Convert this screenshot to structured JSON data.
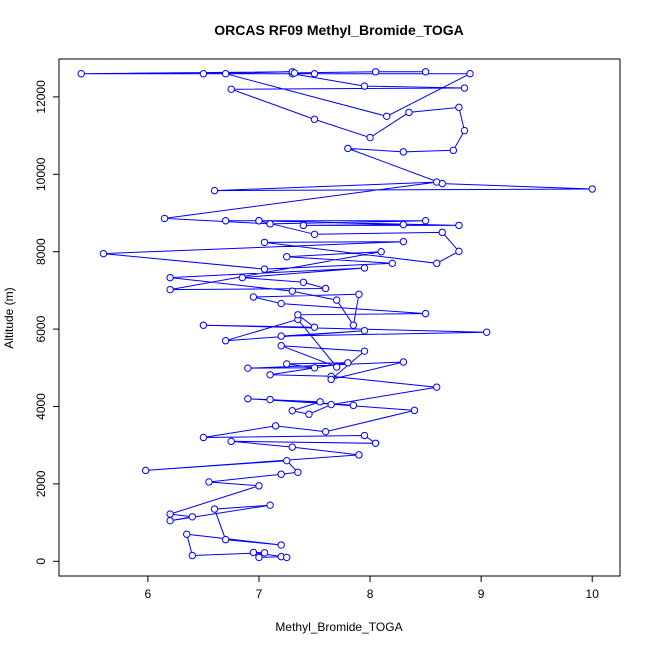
{
  "chart_data": {
    "type": "line",
    "title": "ORCAS RF09 Methyl_Bromide_TOGA",
    "xlabel": "Methyl_Bromide_TOGA",
    "ylabel": "Altitude (m)",
    "xlim": [
      5.2,
      10.25
    ],
    "ylim": [
      -380,
      12980
    ],
    "xticks": [
      6,
      7,
      8,
      9,
      10
    ],
    "yticks": [
      0,
      2000,
      4000,
      6000,
      8000,
      10000,
      12000
    ],
    "grid": false,
    "series": [
      {
        "color": "#0000ff",
        "marker": "open-circle",
        "points": [
          [
            7.0,
            100
          ],
          [
            7.2,
            120
          ],
          [
            7.25,
            100
          ],
          [
            6.95,
            230
          ],
          [
            7.05,
            220
          ],
          [
            6.4,
            150
          ],
          [
            6.35,
            700
          ],
          [
            7.2,
            420
          ],
          [
            6.7,
            560
          ],
          [
            6.6,
            1350
          ],
          [
            7.1,
            1450
          ],
          [
            6.2,
            1050
          ],
          [
            6.4,
            1150
          ],
          [
            6.2,
            1220
          ],
          [
            7.0,
            1950
          ],
          [
            6.55,
            2050
          ],
          [
            7.2,
            2250
          ],
          [
            7.35,
            2300
          ],
          [
            7.25,
            2600
          ],
          [
            5.98,
            2350
          ],
          [
            7.9,
            2750
          ],
          [
            7.3,
            2950
          ],
          [
            6.75,
            3100
          ],
          [
            8.05,
            3050
          ],
          [
            7.95,
            3250
          ],
          [
            6.5,
            3200
          ],
          [
            7.15,
            3500
          ],
          [
            7.6,
            3350
          ],
          [
            8.4,
            3900
          ],
          [
            7.1,
            4180
          ],
          [
            7.85,
            4030
          ],
          [
            6.9,
            4200
          ],
          [
            7.55,
            4120
          ],
          [
            7.3,
            3890
          ],
          [
            7.45,
            3800
          ],
          [
            7.65,
            4050
          ],
          [
            8.6,
            4500
          ],
          [
            7.65,
            4780
          ],
          [
            7.1,
            4820
          ],
          [
            7.8,
            5130
          ],
          [
            7.25,
            5100
          ],
          [
            7.5,
            5000
          ],
          [
            6.9,
            4990
          ],
          [
            8.3,
            5150
          ],
          [
            7.65,
            4700
          ],
          [
            7.95,
            5430
          ],
          [
            7.2,
            5570
          ],
          [
            7.7,
            5020
          ],
          [
            7.35,
            6250
          ],
          [
            6.7,
            5700
          ],
          [
            7.95,
            5960
          ],
          [
            7.2,
            5820
          ],
          [
            9.05,
            5920
          ],
          [
            6.5,
            6100
          ],
          [
            7.5,
            6050
          ],
          [
            7.35,
            6370
          ],
          [
            8.5,
            6400
          ],
          [
            7.2,
            6660
          ],
          [
            6.95,
            6830
          ],
          [
            7.9,
            6900
          ],
          [
            7.85,
            6100
          ],
          [
            7.7,
            6750
          ],
          [
            7.3,
            6980
          ],
          [
            6.2,
            7330
          ],
          [
            7.95,
            7580
          ],
          [
            6.85,
            7330
          ],
          [
            7.4,
            7210
          ],
          [
            7.6,
            7050
          ],
          [
            6.2,
            7020
          ],
          [
            8.1,
            8000
          ],
          [
            7.25,
            7870
          ],
          [
            8.2,
            7700
          ],
          [
            7.05,
            7550
          ],
          [
            5.6,
            7950
          ],
          [
            8.3,
            8260
          ],
          [
            7.05,
            8240
          ],
          [
            8.6,
            7700
          ],
          [
            8.8,
            8010
          ],
          [
            8.65,
            8500
          ],
          [
            7.5,
            8450
          ],
          [
            7.0,
            8800
          ],
          [
            8.8,
            8680
          ],
          [
            7.4,
            8680
          ],
          [
            8.3,
            8700
          ],
          [
            7.0,
            8800
          ],
          [
            6.7,
            8800
          ],
          [
            8.5,
            8800
          ],
          [
            7.1,
            8720
          ],
          [
            6.15,
            8860
          ],
          [
            8.6,
            9800
          ],
          [
            6.6,
            9580
          ],
          [
            10.0,
            9620
          ],
          [
            8.65,
            9760
          ],
          [
            7.8,
            10670
          ],
          [
            8.3,
            10580
          ],
          [
            8.75,
            10620
          ],
          [
            8.85,
            11130
          ],
          [
            8.8,
            11730
          ],
          [
            8.35,
            11600
          ],
          [
            8.0,
            10950
          ],
          [
            7.5,
            11420
          ],
          [
            6.75,
            12200
          ],
          [
            8.85,
            12230
          ],
          [
            7.95,
            12280
          ],
          [
            7.3,
            12600
          ],
          [
            6.7,
            12600
          ],
          [
            8.15,
            11500
          ],
          [
            8.9,
            12600
          ],
          [
            5.4,
            12600
          ],
          [
            7.3,
            12650
          ],
          [
            6.5,
            12600
          ],
          [
            7.5,
            12600
          ],
          [
            7.32,
            12620
          ],
          [
            8.05,
            12650
          ],
          [
            8.5,
            12650
          ]
        ]
      }
    ]
  }
}
